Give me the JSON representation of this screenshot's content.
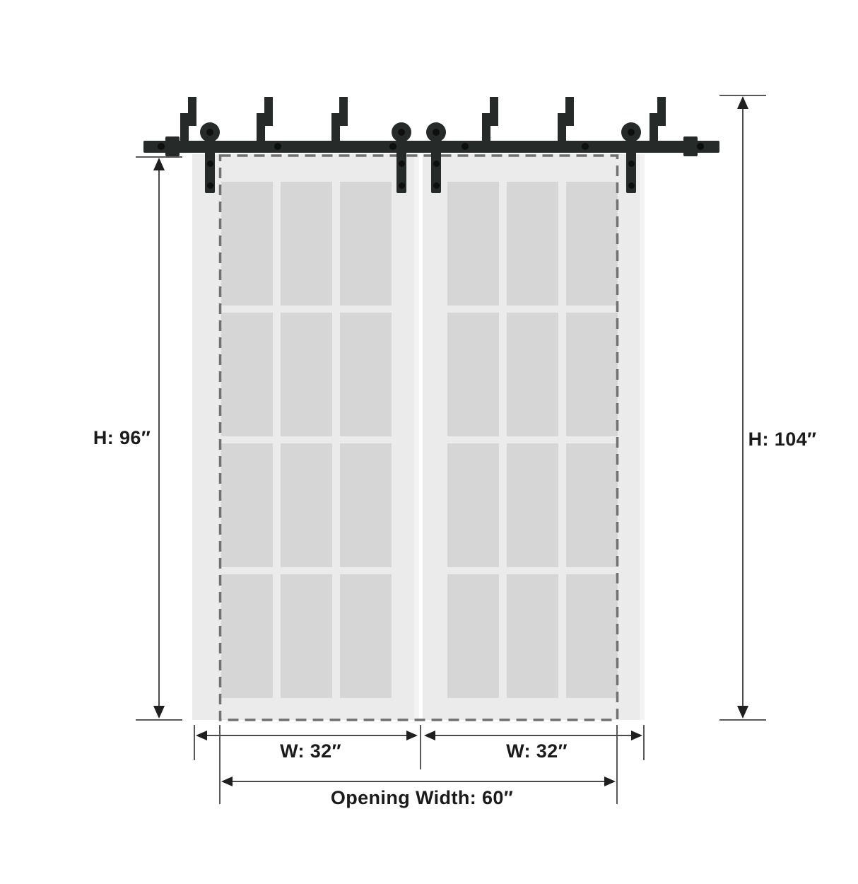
{
  "diagram": {
    "labels": {
      "door_height": "H: 96″",
      "overall_height": "H: 104″",
      "left_door_width": "W: 32″",
      "right_door_width": "W: 32″",
      "opening_width": "Opening Width: 60″"
    },
    "measurements": {
      "door_height_in": 96,
      "overall_height_in": 104,
      "door_width_in": 32,
      "opening_width_in": 60
    },
    "doors": {
      "count": 2,
      "pane_columns": 3,
      "pane_rows": 4
    },
    "hardware": {
      "wall_brackets": 6,
      "rollers": 4,
      "hanger_straps": 4
    },
    "colors": {
      "hardware": "#262a28",
      "door_face": "#ebebeb",
      "glass_pane": "#d6d6d6",
      "dashed_outline": "#717171",
      "dimension_line": "#4a4a4a",
      "label_text": "#1b1b1b",
      "background": "#ffffff"
    }
  }
}
